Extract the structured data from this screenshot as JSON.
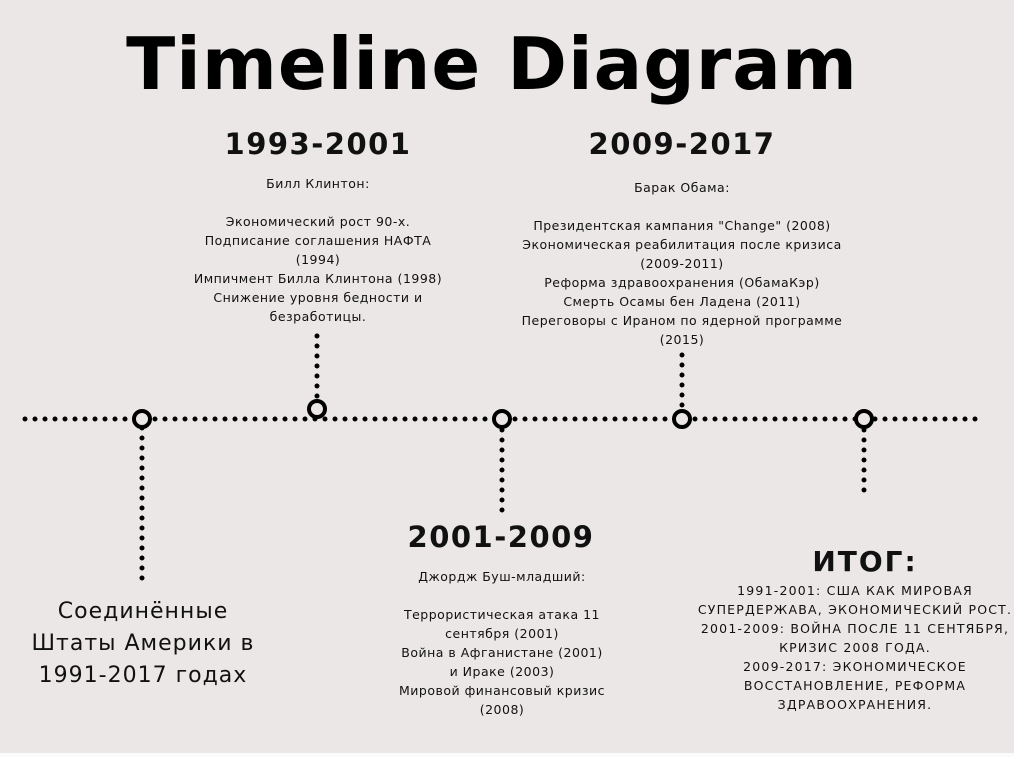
{
  "title": "Timeline Diagram",
  "periods": [
    {
      "years": "1993-2001",
      "head": "Билл Клинтон:",
      "lines": [
        "Экономический рост 90-х.",
        "Подписание соглашения НАФТА",
        "(1994)",
        "Импичмент Билла Клинтона (1998)",
        "Снижение уровня бедности и",
        "безработицы."
      ]
    },
    {
      "years": "2009-2017",
      "head": "Барак Обама:",
      "lines": [
        "Президентская кампания \"Change\" (2008)",
        "Экономическая реабилитация после кризиса",
        "(2009-2011)",
        "Реформа здравоохранения (ОбамаКэр)",
        "Смерть Осамы бен Ладена (2011)",
        "Переговоры с Ираном по ядерной программе",
        "(2015)"
      ]
    },
    {
      "years": "2001-2009",
      "head": "Джордж Буш-младший:",
      "lines": [
        "Террористическая атака 11",
        "сентября (2001)",
        "Война в Афганистане (2001)",
        "и Ираке (2003)",
        "Мировой финансовый кризис",
        "(2008)"
      ]
    }
  ],
  "intro": {
    "lines": [
      "Соединённые",
      "Штаты Америки в",
      "1991-2017 годах"
    ]
  },
  "summary": {
    "title": "ИТОГ:",
    "lines": [
      "1991-2001: США КАК МИРОВАЯ",
      "СУПЕРДЕРЖАВА, ЭКОНОМИЧЕСКИЙ РОСТ.",
      "2001-2009: ВОЙНА ПОСЛЕ 11 СЕНТЯБРЯ,",
      "КРИЗИС 2008 ГОДА.",
      "2009-2017: ЭКОНОМИЧЕСКОЕ",
      "ВОССТАНОВЛЕНИЕ, РЕФОРМА",
      "ЗДРАВООХРАНЕНИЯ."
    ]
  },
  "colors": {
    "background": "#ebe7e6",
    "ink": "#000000"
  }
}
